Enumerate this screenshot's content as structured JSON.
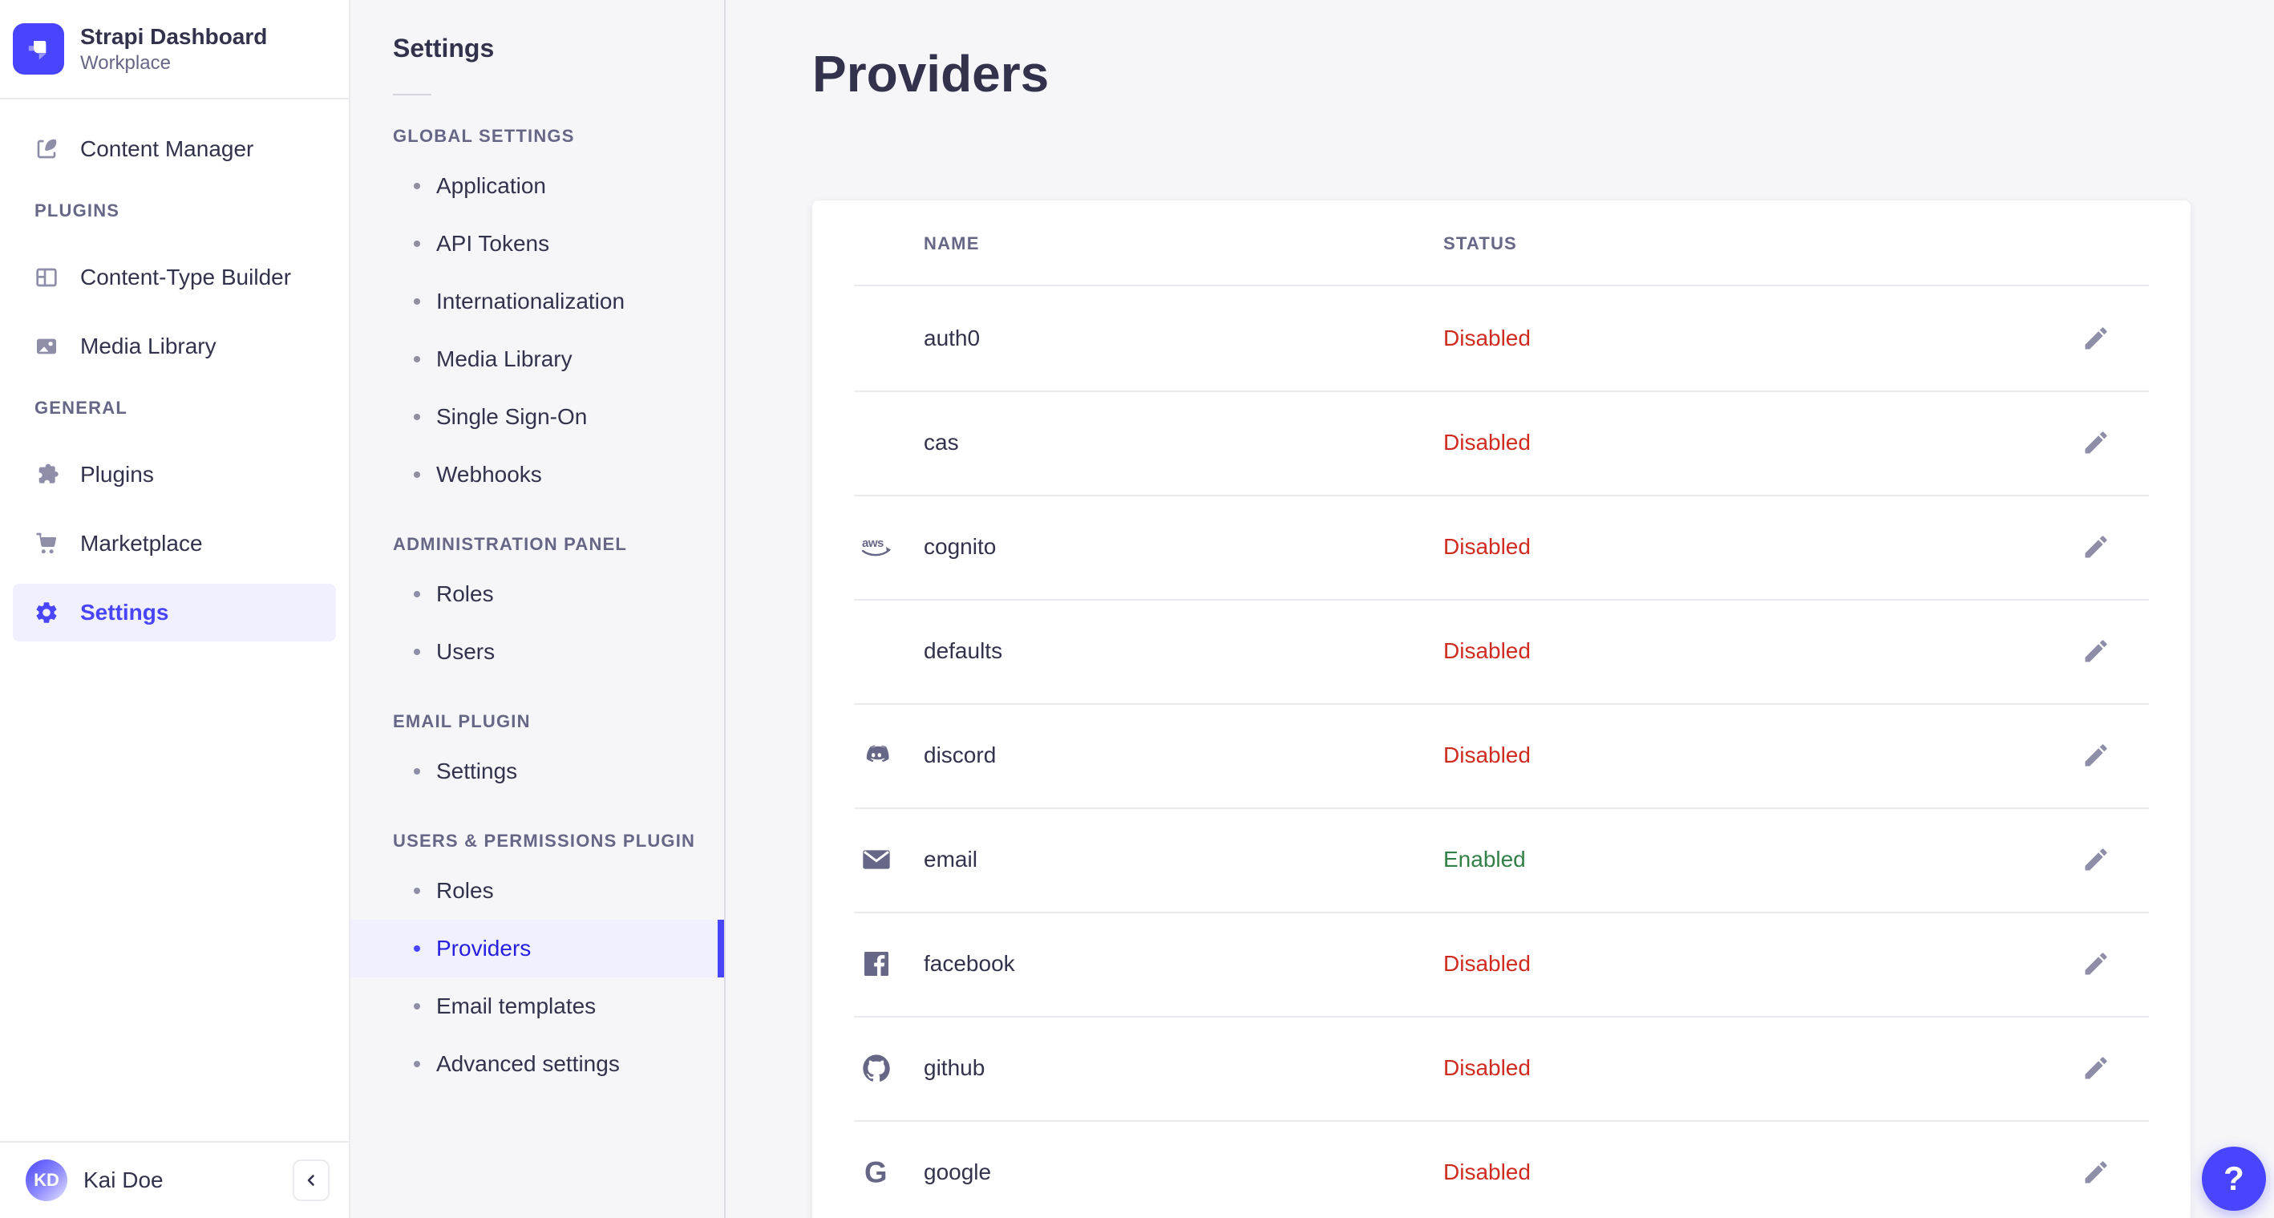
{
  "sidebar": {
    "brand": {
      "title": "Strapi Dashboard",
      "subtitle": "Workplace",
      "logo_icon": "strapi-logo"
    },
    "nav": {
      "top_items": [
        {
          "label": "Content Manager",
          "icon": "content-manager-icon"
        }
      ],
      "sections": [
        {
          "label": "PLUGINS",
          "items": [
            {
              "label": "Content-Type Builder",
              "icon": "content-type-builder-icon"
            },
            {
              "label": "Media Library",
              "icon": "media-library-icon"
            }
          ]
        },
        {
          "label": "GENERAL",
          "items": [
            {
              "label": "Plugins",
              "icon": "puzzle-icon"
            },
            {
              "label": "Marketplace",
              "icon": "cart-icon"
            },
            {
              "label": "Settings",
              "icon": "gear-icon",
              "active": true
            }
          ]
        }
      ]
    },
    "user": {
      "initials": "KD",
      "name": "Kai Doe"
    },
    "collapse_icon": "chevron-left-icon"
  },
  "settings_nav": {
    "title": "Settings",
    "sections": [
      {
        "label": "GLOBAL SETTINGS",
        "items": [
          {
            "label": "Application"
          },
          {
            "label": "API Tokens"
          },
          {
            "label": "Internationalization"
          },
          {
            "label": "Media Library"
          },
          {
            "label": "Single Sign-On"
          },
          {
            "label": "Webhooks"
          }
        ]
      },
      {
        "label": "ADMINISTRATION PANEL",
        "items": [
          {
            "label": "Roles"
          },
          {
            "label": "Users"
          }
        ]
      },
      {
        "label": "EMAIL PLUGIN",
        "items": [
          {
            "label": "Settings"
          }
        ]
      },
      {
        "label": "USERS & PERMISSIONS PLUGIN",
        "items": [
          {
            "label": "Roles"
          },
          {
            "label": "Providers",
            "active": true
          },
          {
            "label": "Email templates"
          },
          {
            "label": "Advanced settings"
          }
        ]
      }
    ]
  },
  "main": {
    "title": "Providers",
    "table": {
      "columns": [
        {
          "label": "NAME"
        },
        {
          "label": "STATUS"
        }
      ],
      "edit_icon": "pencil-icon",
      "rows": [
        {
          "name": "auth0",
          "status": "Disabled",
          "icon": null
        },
        {
          "name": "cas",
          "status": "Disabled",
          "icon": null
        },
        {
          "name": "cognito",
          "status": "Disabled",
          "icon": "aws-icon"
        },
        {
          "name": "defaults",
          "status": "Disabled",
          "icon": null
        },
        {
          "name": "discord",
          "status": "Disabled",
          "icon": "discord-icon"
        },
        {
          "name": "email",
          "status": "Enabled",
          "icon": "email-icon"
        },
        {
          "name": "facebook",
          "status": "Disabled",
          "icon": "facebook-icon"
        },
        {
          "name": "github",
          "status": "Disabled",
          "icon": "github-icon"
        },
        {
          "name": "google",
          "status": "Disabled",
          "icon": "google-icon"
        }
      ]
    }
  },
  "help": {
    "label": "?",
    "icon": "question-mark-icon"
  },
  "colors": {
    "primary": "#4945ff",
    "primary_light": "#f0f0ff",
    "active_text": "#271fe0",
    "danger": "#d02b20",
    "success": "#328048",
    "text": "#32324d",
    "muted": "#666687"
  }
}
